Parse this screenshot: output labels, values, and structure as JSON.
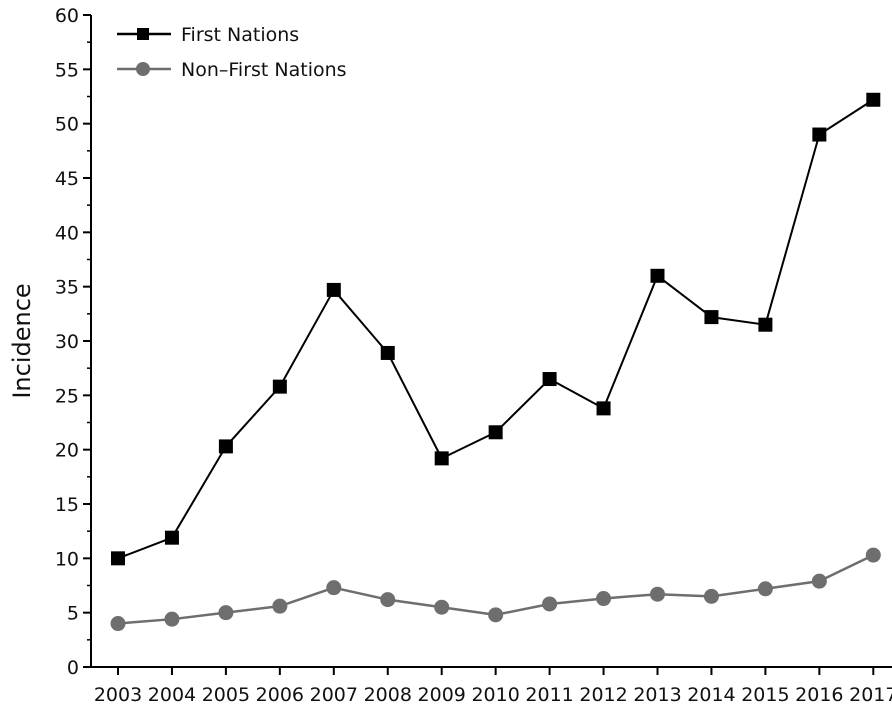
{
  "chart_data": {
    "type": "line",
    "title": "",
    "xlabel": "",
    "ylabel": "Incidence",
    "ylim": [
      0,
      60
    ],
    "yticks": [
      0,
      5,
      10,
      15,
      20,
      25,
      30,
      35,
      40,
      45,
      50,
      55,
      60
    ],
    "categories": [
      "2003",
      "2004",
      "2005",
      "2006",
      "2007",
      "2008",
      "2009",
      "2010",
      "2011",
      "2012",
      "2013",
      "2014",
      "2015",
      "2016",
      "2017"
    ],
    "grid": false,
    "legend_position": "top-left",
    "series": [
      {
        "name": "First Nations",
        "marker": "square",
        "color": "#000000",
        "values": [
          10.0,
          11.9,
          20.3,
          25.8,
          34.7,
          28.9,
          19.2,
          21.6,
          26.5,
          23.8,
          36.0,
          32.2,
          31.5,
          49.0,
          52.2
        ]
      },
      {
        "name": "Non–First Nations",
        "marker": "circle",
        "color": "#6e6e6e",
        "values": [
          4.0,
          4.4,
          5.0,
          5.6,
          7.3,
          6.2,
          5.5,
          4.8,
          5.8,
          6.3,
          6.7,
          6.5,
          7.2,
          7.9,
          10.3
        ]
      }
    ]
  }
}
